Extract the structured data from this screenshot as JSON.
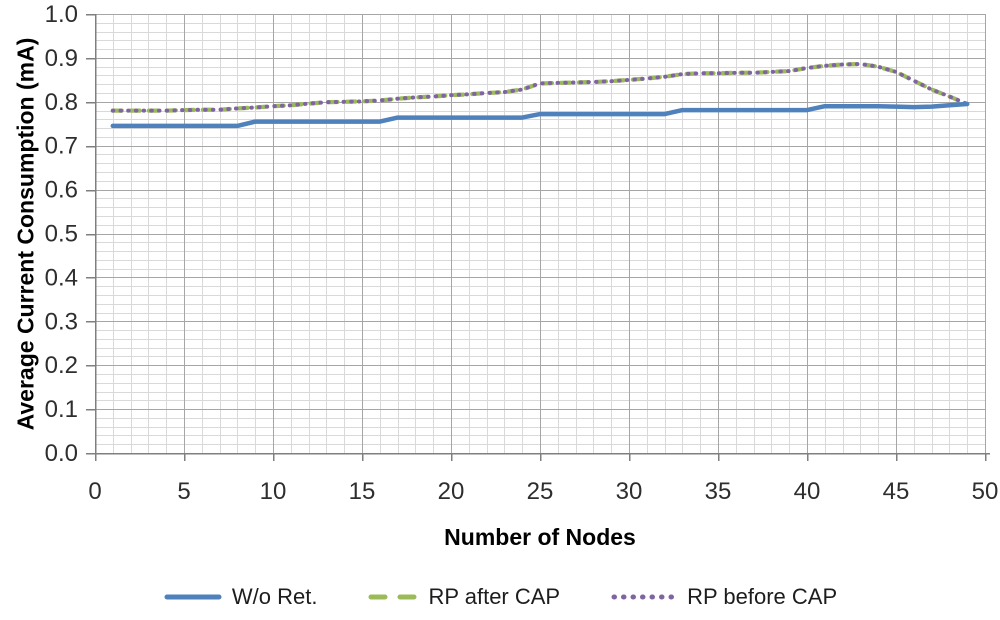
{
  "chart_data": {
    "type": "line",
    "title": "",
    "xlabel": "Number of Nodes",
    "ylabel": "Average Current Consumption (mA)",
    "xlim": [
      0,
      50
    ],
    "ylim": [
      0.0,
      1.0
    ],
    "x_major_ticks": [
      0,
      5,
      10,
      15,
      20,
      25,
      30,
      35,
      40,
      45,
      50
    ],
    "x_tick_labels": [
      "0",
      "5",
      "10",
      "15",
      "20",
      "25",
      "30",
      "35",
      "40",
      "45",
      "50"
    ],
    "y_major_ticks": [
      0.0,
      0.1,
      0.2,
      0.3,
      0.4,
      0.5,
      0.6,
      0.7,
      0.8,
      0.9,
      1.0
    ],
    "y_tick_labels": [
      "0.0",
      "0.1",
      "0.2",
      "0.3",
      "0.4",
      "0.5",
      "0.6",
      "0.7",
      "0.8",
      "0.9",
      "1.0"
    ],
    "x_minor_step": 1,
    "y_minor_step": 0.02,
    "grid": "major-and-minor",
    "legend_position": "bottom-center",
    "colors": {
      "minor_grid": "#d9d9d9",
      "major_grid": "#a6a6a6",
      "axis": "#7f7f7f",
      "tick_text": "#2e2e2e"
    },
    "x": [
      1,
      2,
      3,
      4,
      5,
      6,
      7,
      8,
      9,
      10,
      11,
      12,
      13,
      14,
      15,
      16,
      17,
      18,
      19,
      20,
      21,
      22,
      23,
      24,
      25,
      26,
      27,
      28,
      29,
      30,
      31,
      32,
      33,
      34,
      35,
      36,
      37,
      38,
      39,
      40,
      41,
      42,
      43,
      44,
      45,
      46,
      47,
      48,
      49
    ],
    "series": [
      {
        "name": "W/o Ret.",
        "color": "#4f81bd",
        "style": "solid",
        "values": [
          0.745,
          0.745,
          0.745,
          0.745,
          0.745,
          0.745,
          0.745,
          0.745,
          0.755,
          0.755,
          0.755,
          0.755,
          0.755,
          0.755,
          0.755,
          0.755,
          0.764,
          0.764,
          0.764,
          0.764,
          0.764,
          0.764,
          0.764,
          0.764,
          0.772,
          0.772,
          0.772,
          0.772,
          0.772,
          0.772,
          0.772,
          0.772,
          0.781,
          0.781,
          0.781,
          0.781,
          0.781,
          0.781,
          0.781,
          0.781,
          0.79,
          0.79,
          0.79,
          0.79,
          0.789,
          0.788,
          0.789,
          0.792,
          0.795
        ]
      },
      {
        "name": "RP after CAP",
        "color": "#9bbb59",
        "style": "dashed",
        "values": [
          0.78,
          0.78,
          0.78,
          0.78,
          0.781,
          0.782,
          0.782,
          0.785,
          0.787,
          0.79,
          0.792,
          0.796,
          0.799,
          0.8,
          0.801,
          0.803,
          0.807,
          0.81,
          0.812,
          0.815,
          0.817,
          0.82,
          0.822,
          0.828,
          0.842,
          0.843,
          0.844,
          0.845,
          0.847,
          0.85,
          0.853,
          0.857,
          0.863,
          0.865,
          0.865,
          0.866,
          0.866,
          0.868,
          0.87,
          0.877,
          0.882,
          0.885,
          0.886,
          0.88,
          0.868,
          0.848,
          0.828,
          0.812,
          0.795
        ]
      },
      {
        "name": "RP before CAP",
        "color": "#8064a2",
        "style": "dotted",
        "values": [
          0.78,
          0.78,
          0.78,
          0.78,
          0.781,
          0.782,
          0.782,
          0.785,
          0.787,
          0.79,
          0.792,
          0.796,
          0.799,
          0.8,
          0.801,
          0.803,
          0.807,
          0.81,
          0.812,
          0.815,
          0.817,
          0.82,
          0.822,
          0.828,
          0.842,
          0.843,
          0.844,
          0.845,
          0.847,
          0.85,
          0.853,
          0.857,
          0.863,
          0.865,
          0.865,
          0.866,
          0.866,
          0.868,
          0.87,
          0.877,
          0.882,
          0.885,
          0.886,
          0.88,
          0.868,
          0.848,
          0.828,
          0.812,
          0.795
        ]
      }
    ]
  }
}
